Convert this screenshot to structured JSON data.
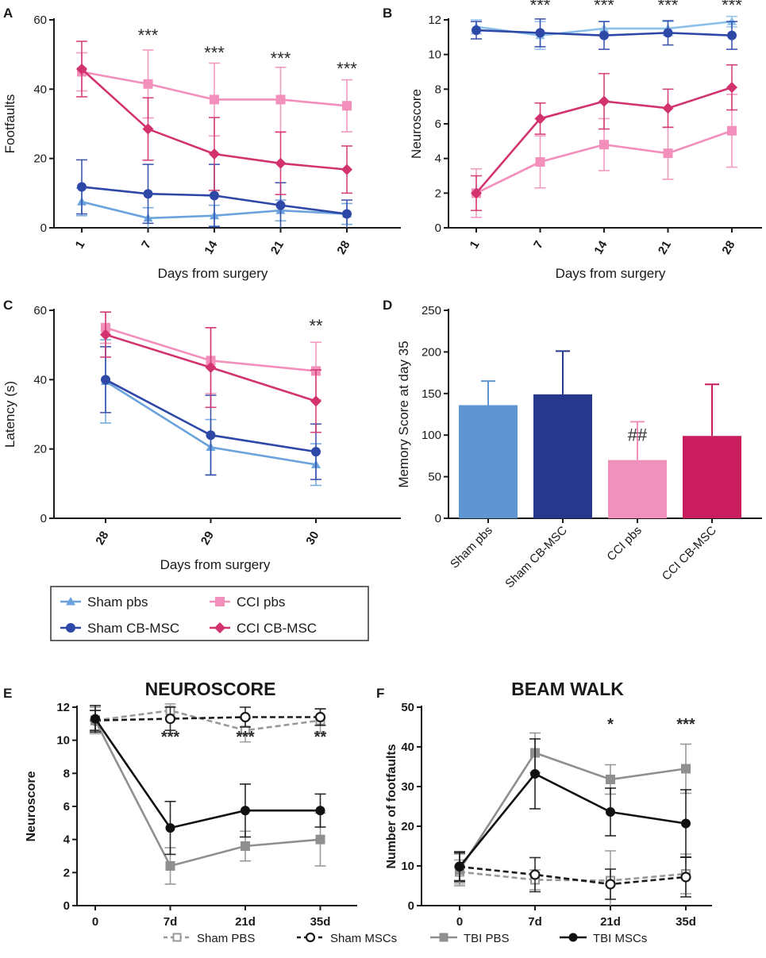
{
  "chart_data": [
    {
      "id": "A",
      "type": "line",
      "panel_label": "A",
      "title": "",
      "xlabel": "Days from surgery",
      "ylabel": "Footfaults",
      "categories": [
        "1",
        "7",
        "14",
        "21",
        "28"
      ],
      "ylim": [
        0,
        60
      ],
      "yticks": [
        "0",
        "20",
        "40",
        "60"
      ],
      "series": [
        {
          "name": "Sham pbs",
          "color": "#6aa3dd",
          "marker": "triangle",
          "values": [
            7.5,
            2.8,
            3.5,
            5.0,
            4.0
          ],
          "err": [
            4,
            3,
            3,
            3,
            3
          ]
        },
        {
          "name": "Sham CB-MSC",
          "color": "#2e48a8",
          "marker": "circle",
          "values": [
            11.8,
            9.8,
            9.3,
            6.5,
            4.0
          ],
          "err": [
            7.8,
            8.5,
            9,
            6.5,
            4
          ]
        },
        {
          "name": "CCI pbs",
          "color": "#f290bb",
          "marker": "square",
          "values": [
            45.0,
            41.5,
            37.0,
            37.0,
            35.2
          ],
          "err": [
            5.5,
            9.8,
            10.5,
            9.3,
            7.5
          ]
        },
        {
          "name": "CCI CB-MSC",
          "color": "#d2336f",
          "marker": "diamond",
          "values": [
            45.8,
            28.5,
            21.3,
            18.6,
            16.8
          ],
          "err": [
            8,
            9,
            10.5,
            9,
            6.8
          ]
        }
      ],
      "annotations": [
        {
          "text": "***",
          "x": "7"
        },
        {
          "text": "***",
          "x": "14"
        },
        {
          "text": "***",
          "x": "21"
        },
        {
          "text": "***",
          "x": "28"
        }
      ]
    },
    {
      "id": "B",
      "type": "line",
      "panel_label": "B",
      "title": "",
      "xlabel": "Days from surgery",
      "ylabel": "Neuroscore",
      "categories": [
        "1",
        "7",
        "14",
        "21",
        "28"
      ],
      "ylim": [
        0,
        12
      ],
      "yticks": [
        "0",
        "2",
        "4",
        "6",
        "8",
        "10",
        "12"
      ],
      "series": [
        {
          "name": "Sham pbs",
          "color": "#8cbfea",
          "marker": "triangle",
          "values": [
            11.6,
            11.1,
            11.5,
            11.5,
            11.9
          ],
          "err": [
            0.4,
            0.8,
            0.4,
            0.4,
            0.3
          ]
        },
        {
          "name": "Sham CB-MSC",
          "color": "#2e48a8",
          "marker": "circle",
          "values": [
            11.4,
            11.25,
            11.1,
            11.25,
            11.1
          ],
          "err": [
            0.5,
            0.8,
            0.8,
            0.7,
            0.8
          ]
        },
        {
          "name": "CCI pbs",
          "color": "#f290bb",
          "marker": "square",
          "values": [
            2.0,
            3.8,
            4.8,
            4.3,
            5.6
          ],
          "err": [
            1.4,
            1.5,
            1.5,
            1.5,
            2.1
          ]
        },
        {
          "name": "CCI CB-MSC",
          "color": "#d2336f",
          "marker": "diamond",
          "values": [
            2.0,
            6.3,
            7.3,
            6.9,
            8.1
          ],
          "err": [
            1,
            0.9,
            1.6,
            1.1,
            1.3
          ]
        }
      ],
      "annotations": [
        {
          "text": "***",
          "x": "7"
        },
        {
          "text": "***",
          "x": "14"
        },
        {
          "text": "***",
          "x": "21"
        },
        {
          "text": "***",
          "x": "28"
        }
      ]
    },
    {
      "id": "C",
      "type": "line",
      "panel_label": "C",
      "title": "",
      "xlabel": "Days from surgery",
      "ylabel": "Latency (s)",
      "categories": [
        "28",
        "29",
        "30"
      ],
      "ylim": [
        0,
        60
      ],
      "yticks": [
        "0",
        "20",
        "40",
        "60"
      ],
      "series": [
        {
          "name": "Sham pbs",
          "color": "#6aa3dd",
          "marker": "triangle",
          "values": [
            39.5,
            20.5,
            15.5
          ],
          "err": [
            12,
            8,
            6
          ]
        },
        {
          "name": "Sham CB-MSC",
          "color": "#2e48a8",
          "marker": "circle",
          "values": [
            40.0,
            24.0,
            19.2
          ],
          "err": [
            9.5,
            11.5,
            8
          ]
        },
        {
          "name": "CCI pbs",
          "color": "#f290bb",
          "marker": "square",
          "values": [
            55.0,
            45.5,
            42.5
          ],
          "err": [
            4.5,
            9.5,
            8.3
          ]
        },
        {
          "name": "CCI CB-MSC",
          "color": "#d2336f",
          "marker": "diamond",
          "values": [
            53.0,
            43.5,
            33.8
          ],
          "err": [
            6.5,
            11.5,
            9
          ]
        }
      ],
      "annotations": [
        {
          "text": "**",
          "x": "30"
        }
      ]
    },
    {
      "id": "D",
      "type": "bar",
      "panel_label": "D",
      "title": "",
      "xlabel": "",
      "ylabel": "Memory Score at day 35",
      "categories": [
        "Sham pbs",
        "Sham CB-MSC",
        "CCI pbs",
        "CCI CB-MSC"
      ],
      "values": [
        136,
        149,
        70,
        99
      ],
      "err": [
        29,
        52,
        46,
        62
      ],
      "colors": [
        "#5f95d1",
        "#27388c",
        "#f091bc",
        "#c91d5e"
      ],
      "ylim": [
        0,
        250
      ],
      "yticks": [
        "0",
        "50",
        "100",
        "150",
        "200",
        "250"
      ],
      "annotations": [
        {
          "text": "##",
          "x": "CCI pbs"
        }
      ]
    },
    {
      "id": "E",
      "type": "line",
      "panel_label": "E",
      "title": "NEUROSCORE",
      "xlabel": "",
      "ylabel": "Neuroscore",
      "categories": [
        "0",
        "7d",
        "21d",
        "35d"
      ],
      "ylim": [
        0,
        12
      ],
      "yticks": [
        "0",
        "2",
        "4",
        "6",
        "8",
        "10",
        "12"
      ],
      "series": [
        {
          "name": "Sham PBS",
          "color": "#999999",
          "marker": "square-open",
          "dash": true,
          "values": [
            11.2,
            11.8,
            10.6,
            11.2
          ],
          "err": [
            0.6,
            0.4,
            0.7,
            0.7
          ]
        },
        {
          "name": "Sham MSCs",
          "color": "#1a1a1a",
          "marker": "circle-open",
          "dash": true,
          "values": [
            11.2,
            11.3,
            11.4,
            11.4
          ],
          "err": [
            0.6,
            0.7,
            0.6,
            0.5
          ]
        },
        {
          "name": "TBI PBS",
          "color": "#8f8f8f",
          "marker": "square",
          "dash": false,
          "values": [
            11.2,
            2.4,
            3.6,
            4.0
          ],
          "err": [
            0.8,
            1.1,
            0.9,
            1.6
          ]
        },
        {
          "name": "TBI MSCs",
          "color": "#111111",
          "marker": "circle",
          "dash": false,
          "values": [
            11.3,
            4.7,
            5.75,
            5.75
          ],
          "err": [
            0.8,
            1.6,
            1.6,
            1.0
          ]
        }
      ],
      "annotations": [
        {
          "text": "***",
          "x": "7d"
        },
        {
          "text": "***",
          "x": "21d"
        },
        {
          "text": "**",
          "x": "35d"
        }
      ]
    },
    {
      "id": "F",
      "type": "line",
      "panel_label": "F",
      "title": "BEAM WALK",
      "xlabel": "",
      "ylabel": "Number of footfaults",
      "categories": [
        "0",
        "7d",
        "21d",
        "35d"
      ],
      "ylim": [
        0,
        50
      ],
      "yticks": [
        "0",
        "10",
        "20",
        "30",
        "40",
        "50"
      ],
      "series": [
        {
          "name": "Sham PBS",
          "color": "#999999",
          "marker": "square-open",
          "dash": true,
          "values": [
            8.5,
            6.5,
            6.3,
            8.0
          ],
          "err": [
            3,
            2.5,
            7.5,
            5
          ]
        },
        {
          "name": "Sham MSCs",
          "color": "#1a1a1a",
          "marker": "circle-open",
          "dash": true,
          "values": [
            9.8,
            7.8,
            5.4,
            7.2
          ],
          "err": [
            3.8,
            4.3,
            3.8,
            5
          ]
        },
        {
          "name": "TBI PBS",
          "color": "#8f8f8f",
          "marker": "square",
          "dash": false,
          "values": [
            9.0,
            38.5,
            31.8,
            34.5
          ],
          "err": [
            4,
            5,
            3.7,
            6.2
          ]
        },
        {
          "name": "TBI MSCs",
          "color": "#111111",
          "marker": "circle",
          "dash": false,
          "values": [
            9.8,
            33.2,
            23.6,
            20.7
          ],
          "err": [
            3.5,
            8.8,
            6,
            8.5
          ]
        }
      ],
      "annotations": [
        {
          "text": "*",
          "x": "21d"
        },
        {
          "text": "***",
          "x": "35d"
        }
      ]
    }
  ],
  "legend_top": {
    "entries": [
      {
        "label": "Sham pbs",
        "color": "#6aa3dd",
        "marker": "triangle"
      },
      {
        "label": "CCI pbs",
        "color": "#f290bb",
        "marker": "square"
      },
      {
        "label": "Sham CB-MSC",
        "color": "#2e48a8",
        "marker": "circle"
      },
      {
        "label": "CCI CB-MSC",
        "color": "#d2336f",
        "marker": "diamond"
      }
    ]
  },
  "legend_bottom": {
    "entries": [
      {
        "label": "Sham PBS",
        "color": "#999999",
        "marker": "square-open",
        "dash": true
      },
      {
        "label": "Sham MSCs",
        "color": "#1a1a1a",
        "marker": "circle-open",
        "dash": true
      },
      {
        "label": "TBI PBS",
        "color": "#8f8f8f",
        "marker": "square",
        "dash": false
      },
      {
        "label": "TBI MSCs",
        "color": "#111111",
        "marker": "circle",
        "dash": false
      }
    ]
  }
}
